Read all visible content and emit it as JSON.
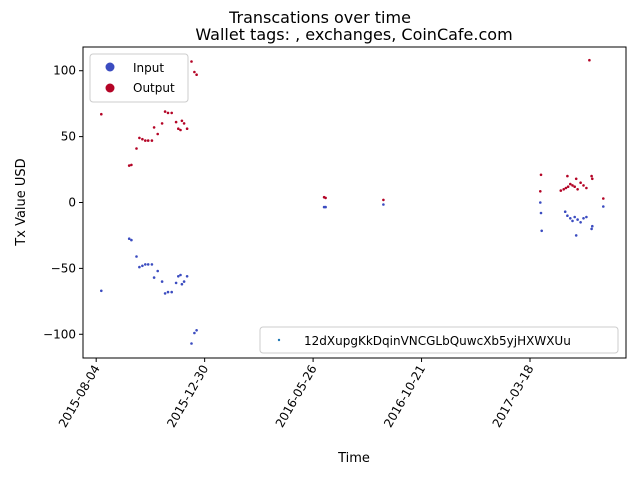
{
  "chart_data": {
    "type": "scatter",
    "title": "Transcations over time",
    "subtitle": "Wallet tags: , exchanges, CoinCafe.com",
    "xlabel": "Time",
    "ylabel": "Tx Value USD",
    "xlim": [
      "2015-07-17",
      "2017-07-27"
    ],
    "ylim": [
      -118,
      118
    ],
    "x_ticks": [
      "2015-08-04",
      "2015-12-30",
      "2016-05-26",
      "2016-10-21",
      "2017-03-18"
    ],
    "y_ticks": [
      -100,
      -50,
      0,
      50,
      100
    ],
    "grid": false,
    "colors": {
      "input": "#3b4cc0",
      "output": "#b40426",
      "wallet": "#1f77b4"
    },
    "legend_upper": {
      "placement": "top-left",
      "entries": [
        {
          "label": "Input",
          "color": "#3b4cc0"
        },
        {
          "label": "Output",
          "color": "#b40426"
        }
      ]
    },
    "legend_lower": {
      "placement": "bottom-right",
      "entries": [
        {
          "label": "12dXupgKkDqinVNCGLbQuwcXb5yjHXWXUu",
          "color": "#1f77b4"
        }
      ]
    },
    "series": [
      {
        "name": "Output",
        "points": [
          [
            "2015-08-11",
            67
          ],
          [
            "2015-09-18",
            28
          ],
          [
            "2015-09-21",
            28.5
          ],
          [
            "2015-09-28",
            41
          ],
          [
            "2015-10-02",
            49
          ],
          [
            "2015-10-06",
            48
          ],
          [
            "2015-10-10",
            47
          ],
          [
            "2015-10-14",
            47
          ],
          [
            "2015-10-19",
            47
          ],
          [
            "2015-10-22",
            57
          ],
          [
            "2015-10-27",
            52
          ],
          [
            "2015-11-02",
            60
          ],
          [
            "2015-11-06",
            69
          ],
          [
            "2015-11-10",
            68
          ],
          [
            "2015-11-15",
            68
          ],
          [
            "2015-11-21",
            61
          ],
          [
            "2015-11-24",
            56
          ],
          [
            "2015-11-27",
            55
          ],
          [
            "2015-11-29",
            62
          ],
          [
            "2015-12-02",
            60
          ],
          [
            "2015-12-06",
            56
          ],
          [
            "2015-12-12",
            107
          ],
          [
            "2015-12-16",
            99
          ],
          [
            "2015-12-19",
            97
          ],
          [
            "2016-06-10",
            4
          ],
          [
            "2016-06-12",
            3.5
          ],
          [
            "2016-08-30",
            2
          ],
          [
            "2017-04-02",
            21
          ],
          [
            "2017-04-01",
            8.5
          ],
          [
            "2017-04-29",
            9
          ],
          [
            "2017-05-03",
            10
          ],
          [
            "2017-05-06",
            11
          ],
          [
            "2017-05-09",
            12
          ],
          [
            "2017-05-12",
            14
          ],
          [
            "2017-05-15",
            13
          ],
          [
            "2017-05-18",
            12
          ],
          [
            "2017-05-22",
            10
          ],
          [
            "2017-05-26",
            15
          ],
          [
            "2017-05-30",
            13
          ],
          [
            "2017-06-03",
            11
          ],
          [
            "2017-05-20",
            18
          ],
          [
            "2017-05-08",
            20
          ],
          [
            "2017-06-10",
            20
          ],
          [
            "2017-06-11",
            18
          ],
          [
            "2017-06-07",
            108
          ],
          [
            "2017-06-26",
            3
          ]
        ]
      },
      {
        "name": "Input",
        "points": [
          [
            "2015-08-11",
            -67
          ],
          [
            "2015-09-18",
            -27.5
          ],
          [
            "2015-09-21",
            -28.5
          ],
          [
            "2015-09-28",
            -41
          ],
          [
            "2015-10-02",
            -49
          ],
          [
            "2015-10-06",
            -48
          ],
          [
            "2015-10-10",
            -47
          ],
          [
            "2015-10-14",
            -47
          ],
          [
            "2015-10-19",
            -47
          ],
          [
            "2015-10-22",
            -57
          ],
          [
            "2015-10-27",
            -52
          ],
          [
            "2015-11-02",
            -60
          ],
          [
            "2015-11-06",
            -69
          ],
          [
            "2015-11-10",
            -68
          ],
          [
            "2015-11-15",
            -68
          ],
          [
            "2015-11-21",
            -61
          ],
          [
            "2015-11-24",
            -56
          ],
          [
            "2015-11-27",
            -55
          ],
          [
            "2015-11-29",
            -62
          ],
          [
            "2015-12-02",
            -60
          ],
          [
            "2015-12-06",
            -56
          ],
          [
            "2015-12-12",
            -107
          ],
          [
            "2015-12-16",
            -99
          ],
          [
            "2015-12-19",
            -97
          ],
          [
            "2016-06-10",
            -3.5
          ],
          [
            "2016-06-12",
            -3.5
          ],
          [
            "2016-08-30",
            -1.5
          ],
          [
            "2017-04-01",
            0
          ],
          [
            "2017-04-02",
            -8
          ],
          [
            "2017-04-03",
            -21.5
          ],
          [
            "2017-05-05",
            -7
          ],
          [
            "2017-05-08",
            -10
          ],
          [
            "2017-05-12",
            -12
          ],
          [
            "2017-05-15",
            -14
          ],
          [
            "2017-05-18",
            -11
          ],
          [
            "2017-05-20",
            -25
          ],
          [
            "2017-05-22",
            -13
          ],
          [
            "2017-05-26",
            -15
          ],
          [
            "2017-05-30",
            -12
          ],
          [
            "2017-06-03",
            -11
          ],
          [
            "2017-06-10",
            -20
          ],
          [
            "2017-06-11",
            -18
          ],
          [
            "2017-06-26",
            -3
          ]
        ]
      }
    ]
  }
}
